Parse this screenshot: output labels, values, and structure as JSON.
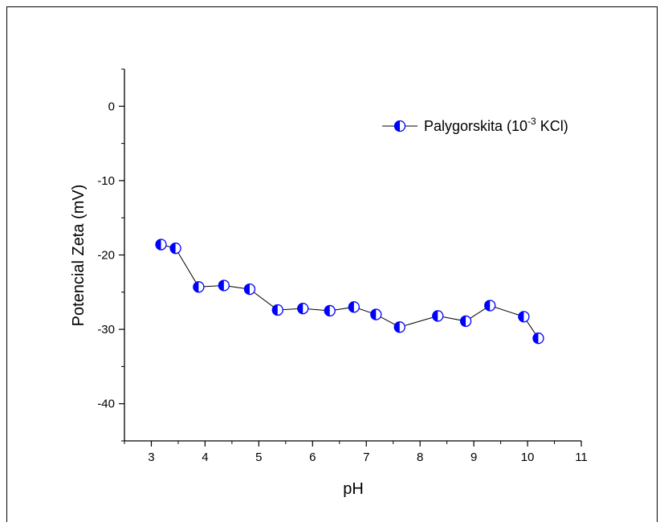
{
  "chart_data": {
    "type": "scatter",
    "x": [
      3.18,
      3.45,
      3.88,
      4.35,
      4.83,
      5.35,
      5.82,
      6.32,
      6.77,
      7.18,
      7.62,
      8.33,
      8.85,
      9.3,
      9.93,
      10.2
    ],
    "series": [
      {
        "name": "Palygorskita (10-3 KCl)",
        "values": [
          -18.6,
          -19.1,
          -24.3,
          -24.1,
          -24.6,
          -27.4,
          -27.2,
          -27.5,
          -27.0,
          -28.0,
          -29.7,
          -28.2,
          -28.9,
          -26.8,
          -28.3,
          -31.2
        ],
        "color": "#0000ff",
        "marker": "half-filled-circle",
        "line": true
      }
    ],
    "xlabel": "pH",
    "ylabel": "Potencial Zeta (mV)",
    "xlim": [
      2.5,
      11
    ],
    "ylim": [
      -45,
      5
    ],
    "xticks": [
      "3",
      "4",
      "5",
      "6",
      "7",
      "8",
      "9",
      "10",
      "11"
    ],
    "yticks": [
      "0",
      "-10",
      "-20",
      "-30",
      "-40"
    ],
    "grid": false,
    "legend": {
      "position": "top-right",
      "prefix": "Palygorskita (10",
      "sup": "-3",
      "suffix": " KCl)"
    }
  }
}
